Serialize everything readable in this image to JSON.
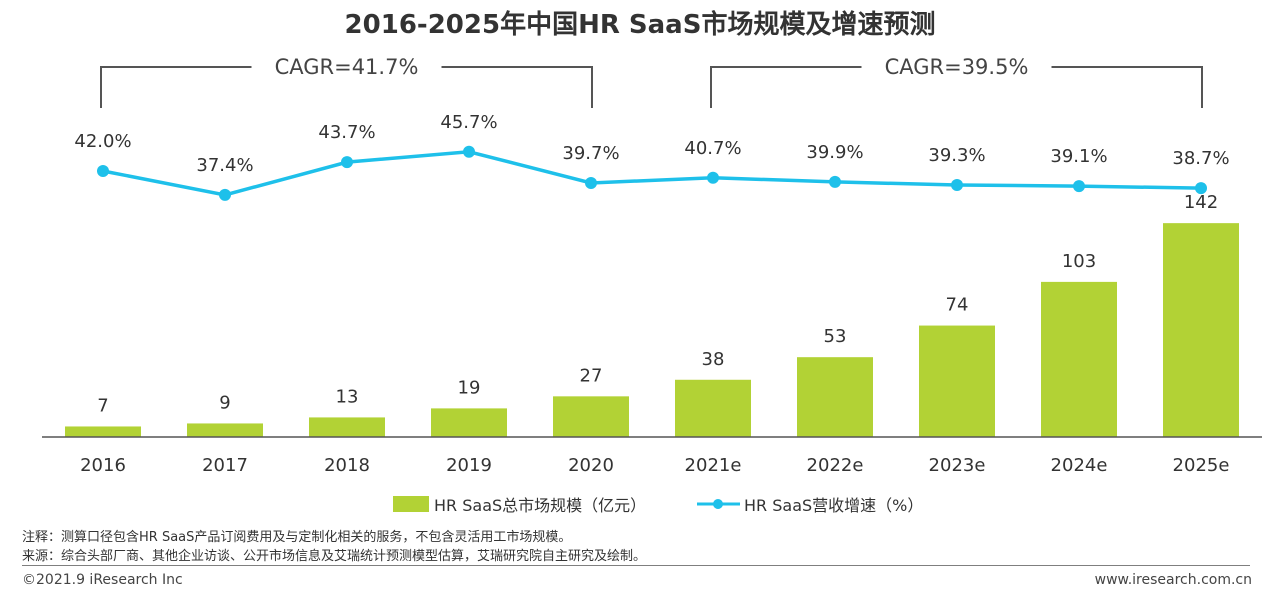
{
  "chart_data": {
    "type": "bar",
    "title": "2016-2025年中国HR SaaS市场规模及增速预测",
    "categories": [
      "2016",
      "2017",
      "2018",
      "2019",
      "2020",
      "2021e",
      "2022e",
      "2023e",
      "2024e",
      "2025e"
    ],
    "series": [
      {
        "name": "HR SaaS总市场规模（亿元）",
        "type": "bar",
        "values": [
          7,
          9,
          13,
          19,
          27,
          38,
          53,
          74,
          103,
          142
        ]
      },
      {
        "name": "HR SaaS营收增速（%）",
        "type": "line",
        "values": [
          42.0,
          37.4,
          43.7,
          45.7,
          39.7,
          40.7,
          39.9,
          39.3,
          39.1,
          38.7
        ]
      }
    ],
    "value_labels": [
      "7",
      "9",
      "13",
      "19",
      "27",
      "38",
      "53",
      "74",
      "103",
      "142"
    ],
    "percent_labels": [
      "42.0%",
      "37.4%",
      "43.7%",
      "45.7%",
      "39.7%",
      "40.7%",
      "39.9%",
      "39.3%",
      "39.1%",
      "38.7%"
    ],
    "annotations": [
      {
        "text": "CAGR=41.7%",
        "from": "2016",
        "to": "2020"
      },
      {
        "text": "CAGR=39.5%",
        "from": "2021e",
        "to": "2025e"
      }
    ],
    "legend_position": "bottom",
    "grid": false,
    "colors": {
      "bar": "#b2d235",
      "line": "#1ec0ea",
      "axis": "#555555",
      "bracket": "#555555"
    }
  },
  "notes": {
    "note": "注释：测算口径包含HR SaaS产品订阅费用及与定制化相关的服务，不包含灵活用工市场规模。",
    "source": "来源：综合头部厂商、其他企业访谈、公开市场信息及艾瑞统计预测模型估算，艾瑞研究院自主研究及绘制。"
  },
  "footer": {
    "copyright": "©2021.9 iResearch Inc",
    "website": "www.iresearch.com.cn"
  }
}
